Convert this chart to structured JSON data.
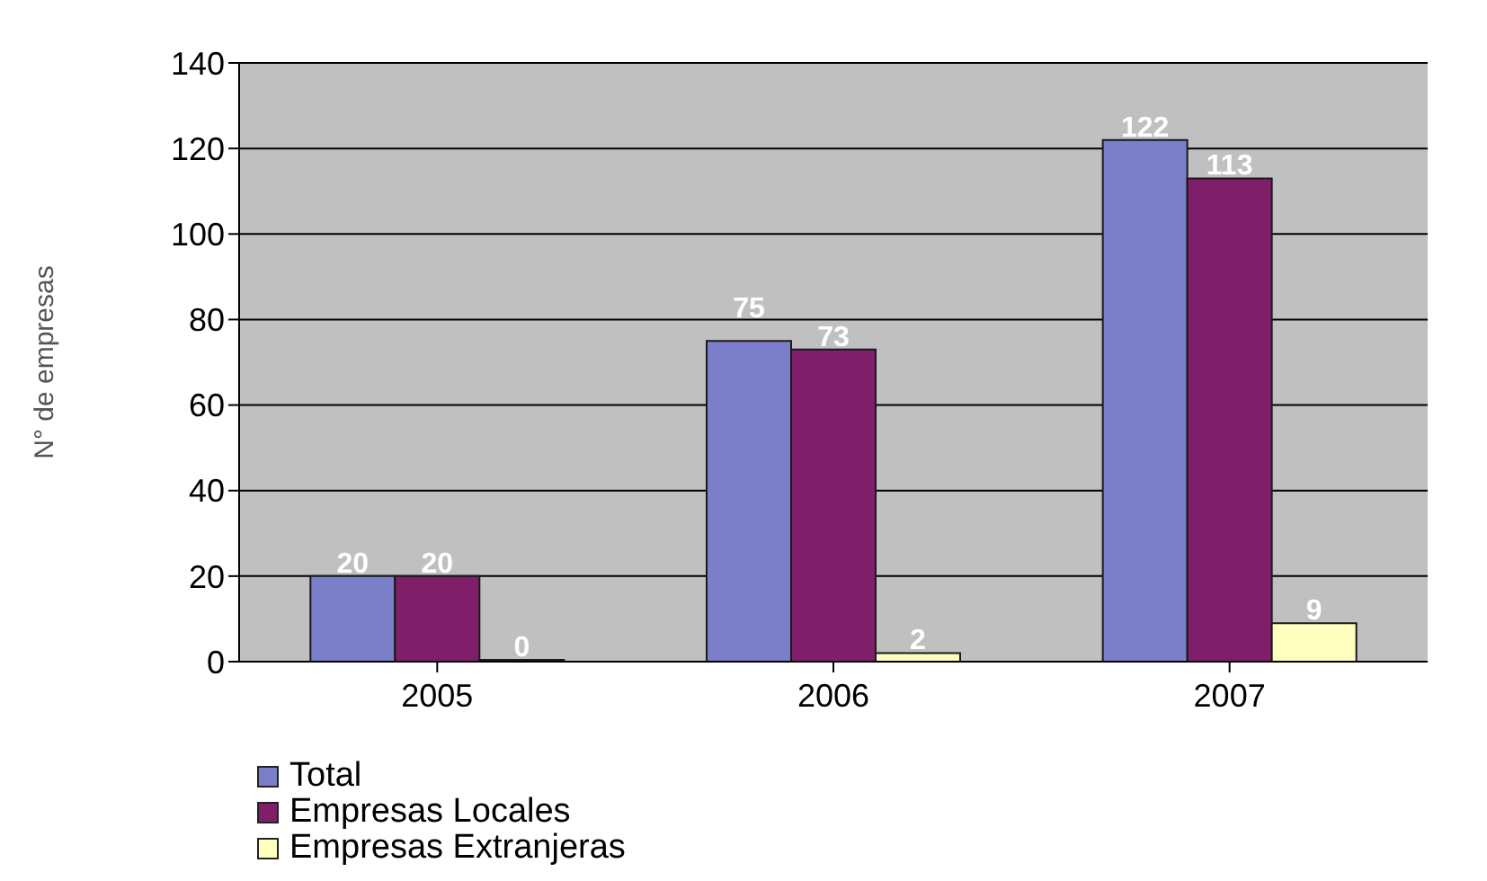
{
  "chart_data": {
    "type": "bar",
    "ylabel": "N° de empresas",
    "categories": [
      "2005",
      "2006",
      "2007"
    ],
    "series": [
      {
        "name": "Total",
        "color": "#7b7fc9",
        "values": [
          20,
          75,
          122
        ]
      },
      {
        "name": "Empresas Locales",
        "color": "#7f1f6a",
        "values": [
          20,
          73,
          113
        ]
      },
      {
        "name": "Empresas Extranjeras",
        "color": "#ffffc0",
        "values": [
          0,
          2,
          9
        ]
      }
    ],
    "ylim": [
      0,
      140
    ],
    "yticks": [
      0,
      20,
      40,
      60,
      80,
      100,
      120,
      140
    ],
    "grid": "y",
    "legend": "bottom left",
    "data_labels": true
  }
}
